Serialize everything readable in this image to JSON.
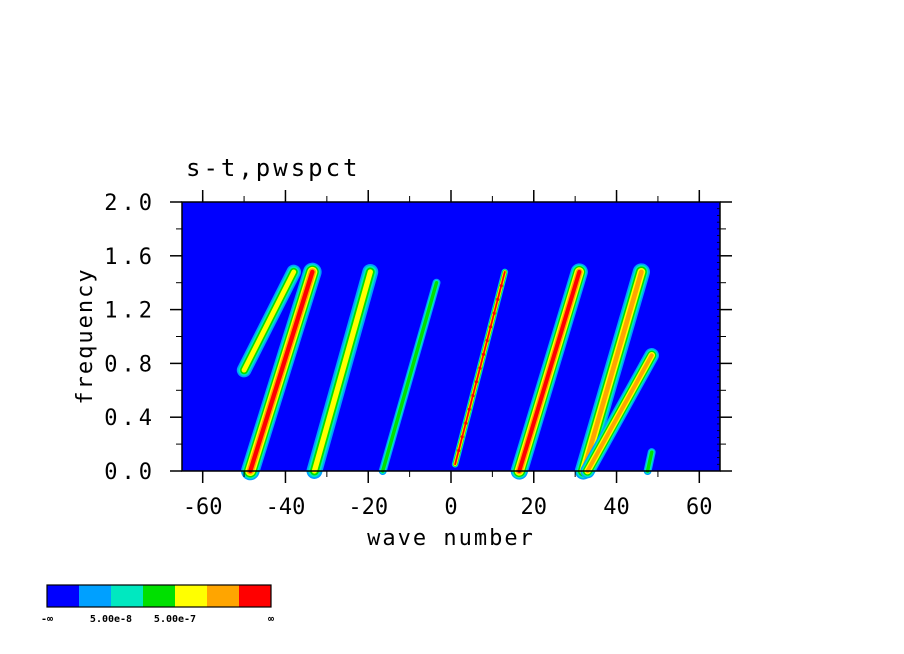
{
  "chart_data": {
    "type": "heatmap",
    "title": "s-t,pwspct",
    "xlabel": "wave number",
    "ylabel": "frequency",
    "xlim": [
      -65,
      65
    ],
    "ylim": [
      0.0,
      2.0
    ],
    "x_ticks": [
      -60,
      -40,
      -20,
      0,
      20,
      40,
      60
    ],
    "x_tick_labels": [
      "-60",
      "-40",
      "-20",
      "0",
      "20",
      "40",
      "60"
    ],
    "y_ticks": [
      0.0,
      0.4,
      0.8,
      1.2,
      1.6,
      2.0
    ],
    "y_tick_labels": [
      "0.0",
      "0.4",
      "0.8",
      "1.2",
      "1.6",
      "2.0"
    ],
    "background_color": "#0000ff",
    "colorbar": {
      "colors": [
        "#0000ff",
        "#00a0ff",
        "#00e8c0",
        "#00e000",
        "#ffff00",
        "#ffa500",
        "#ff0000"
      ],
      "labels": [
        "-∞",
        "5.00e-8",
        "5.00e-7",
        "∞"
      ]
    },
    "bands": [
      {
        "start": [
          -48.5,
          0.0
        ],
        "end": [
          -33.5,
          1.48
        ],
        "peak_level": 6,
        "width": 2.8
      },
      {
        "start": [
          -50.0,
          0.75
        ],
        "end": [
          -38.0,
          1.48
        ],
        "peak_level": 4,
        "width": 2.2
      },
      {
        "start": [
          -33.0,
          0.0
        ],
        "end": [
          -19.5,
          1.48
        ],
        "peak_level": 4,
        "width": 2.4
      },
      {
        "start": [
          -16.5,
          0.0
        ],
        "end": [
          -3.5,
          1.4
        ],
        "peak_level": 3,
        "width": 1.2
      },
      {
        "start": [
          1.0,
          0.05
        ],
        "end": [
          13.0,
          1.48
        ],
        "peak_level": 6,
        "width": 1.0
      },
      {
        "start": [
          16.5,
          0.0
        ],
        "end": [
          31.0,
          1.48
        ],
        "peak_level": 6,
        "width": 2.6
      },
      {
        "start": [
          32.0,
          0.0
        ],
        "end": [
          46.0,
          1.48
        ],
        "peak_level": 5,
        "width": 2.6
      },
      {
        "start": [
          33.0,
          0.0
        ],
        "end": [
          48.5,
          0.86
        ],
        "peak_level": 5,
        "width": 2.2
      },
      {
        "start": [
          47.5,
          0.0
        ],
        "end": [
          48.5,
          0.14
        ],
        "peak_level": 3,
        "width": 1.2
      }
    ]
  }
}
